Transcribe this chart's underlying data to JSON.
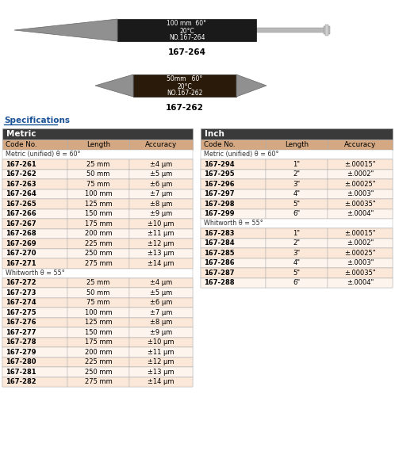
{
  "title_top": "Specifications",
  "image1_label": "167-264",
  "image1_text1": "100 mm  60°",
  "image1_text2": "20°C",
  "image1_text3": "NO.167-264",
  "image2_label": "167-262",
  "image2_text1": "50mm   60°",
  "image2_text2": "20°C",
  "image2_text3": "NO.167-262",
  "metric_header": "Metric",
  "inch_header": "Inch",
  "col_headers": [
    "Code No.",
    "Length",
    "Accuracy"
  ],
  "metric_section1_label": "Metric (unified) θ = 60°",
  "metric_section1": [
    [
      "167-261",
      "25 mm",
      "±4 μm"
    ],
    [
      "167-262",
      "50 mm",
      "±5 μm"
    ],
    [
      "167-263",
      "75 mm",
      "±6 μm"
    ],
    [
      "167-264",
      "100 mm",
      "±7 μm"
    ],
    [
      "167-265",
      "125 mm",
      "±8 μm"
    ],
    [
      "167-266",
      "150 mm",
      "±9 μm"
    ],
    [
      "167-267",
      "175 mm",
      "±10 μm"
    ],
    [
      "167-268",
      "200 mm",
      "±11 μm"
    ],
    [
      "167-269",
      "225 mm",
      "±12 μm"
    ],
    [
      "167-270",
      "250 mm",
      "±13 μm"
    ],
    [
      "167-271",
      "275 mm",
      "±14 μm"
    ]
  ],
  "metric_section2_label": "Whitworth θ = 55°",
  "metric_section2": [
    [
      "167-272",
      "25 mm",
      "±4 μm"
    ],
    [
      "167-273",
      "50 mm",
      "±5 μm"
    ],
    [
      "167-274",
      "75 mm",
      "±6 μm"
    ],
    [
      "167-275",
      "100 mm",
      "±7 μm"
    ],
    [
      "167-276",
      "125 mm",
      "±8 μm"
    ],
    [
      "167-277",
      "150 mm",
      "±9 μm"
    ],
    [
      "167-278",
      "175 mm",
      "±10 μm"
    ],
    [
      "167-279",
      "200 mm",
      "±11 μm"
    ],
    [
      "167-280",
      "225 mm",
      "±12 μm"
    ],
    [
      "167-281",
      "250 mm",
      "±13 μm"
    ],
    [
      "167-282",
      "275 mm",
      "±14 μm"
    ]
  ],
  "inch_section1_label": "Metric (unified) θ = 60°",
  "inch_section1": [
    [
      "167-294",
      "1\"",
      "±.00015\""
    ],
    [
      "167-295",
      "2\"",
      "±.0002\""
    ],
    [
      "167-296",
      "3\"",
      "±.00025\""
    ],
    [
      "167-297",
      "4\"",
      "±.0003\""
    ],
    [
      "167-298",
      "5\"",
      "±.00035\""
    ],
    [
      "167-299",
      "6\"",
      "±.0004\""
    ]
  ],
  "inch_section2_label": "Whitworth θ = 55°",
  "inch_section2": [
    [
      "167-283",
      "1\"",
      "±.00015\""
    ],
    [
      "167-284",
      "2\"",
      "±.0002\""
    ],
    [
      "167-285",
      "3\"",
      "±.00025\""
    ],
    [
      "167-286",
      "4\"",
      "±.0003\""
    ],
    [
      "167-287",
      "5\"",
      "±.00035\""
    ],
    [
      "167-288",
      "6\"",
      "±.0004\""
    ]
  ],
  "bg_color": "#ffffff",
  "header_dark_bg": "#3a3a3a",
  "header_dark_text": "#ffffff",
  "col_header_bg": "#d4a882",
  "col_header_text": "#000000",
  "row_even_bg": "#fdf0e8",
  "row_odd_bg": "#fdf0e8",
  "section_bg": "#ffffff",
  "specs_title_color": "#1a5296",
  "border_color": "#aaaaaa",
  "text_color": "#000000"
}
